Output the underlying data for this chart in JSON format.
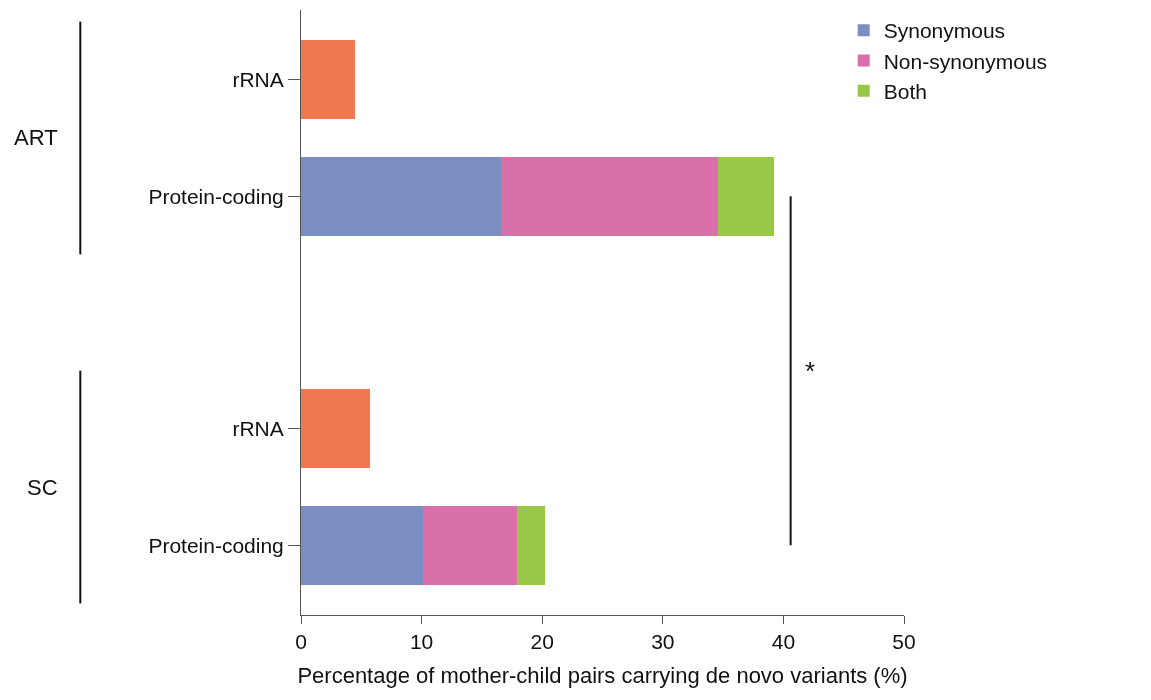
{
  "chart_data": {
    "type": "bar",
    "orientation": "horizontal",
    "stacked": true,
    "categories": [
      "rRNA",
      "Protein-coding",
      null,
      "rRNA",
      "Protein-coding"
    ],
    "series": [
      {
        "color": "#f07850",
        "values": [
          4.5,
          null,
          null,
          5.7,
          null
        ]
      },
      {
        "name": "Synonymous",
        "color": "#7b8dc1",
        "values": [
          null,
          16.6,
          null,
          null,
          10.1
        ]
      },
      {
        "name": "Non-synonymous",
        "color": "#d970aa",
        "values": [
          null,
          18.0,
          null,
          null,
          7.8
        ]
      },
      {
        "name": "Both",
        "color": "#99c848",
        "values": [
          null,
          4.6,
          null,
          null,
          2.3
        ]
      }
    ],
    "xlabel": "Percentage of mother-child pairs carrying de novo variants (%)",
    "xlim": [
      0,
      50
    ],
    "xticks": [
      0,
      10,
      20,
      30,
      40,
      50
    ],
    "annotations": [
      "ART",
      "SC",
      "*"
    ],
    "legend": "top right"
  }
}
